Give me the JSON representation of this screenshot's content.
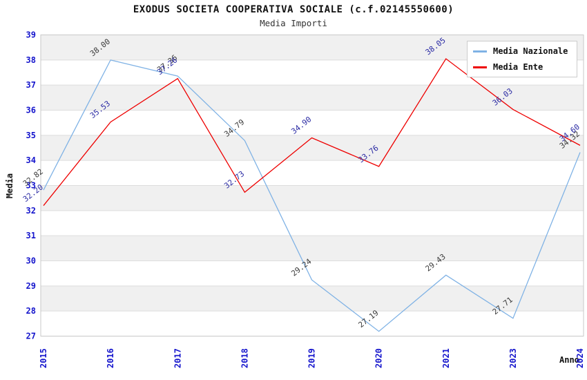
{
  "chart_data": {
    "type": "line",
    "title": "EXODUS SOCIETA COOPERATIVA SOCIALE (c.f.02145550600)",
    "subtitle": "Media Importi",
    "xlabel": "Anno",
    "ylabel": "Media",
    "categories": [
      "2015",
      "2016",
      "2017",
      "2018",
      "2019",
      "2020",
      "2021",
      "2023",
      "2024"
    ],
    "series": [
      {
        "name": "Media Nazionale",
        "color": "#7FB2E5",
        "label_color": "#3A3A3A",
        "values": [
          32.82,
          38.0,
          37.36,
          34.79,
          29.24,
          27.19,
          29.43,
          27.71,
          34.32
        ]
      },
      {
        "name": "Media Ente",
        "color": "#EE0000",
        "label_color": "#2929A3",
        "values": [
          32.2,
          35.53,
          37.26,
          32.73,
          34.9,
          33.76,
          38.05,
          36.03,
          34.6
        ]
      }
    ],
    "ylim": [
      27,
      39
    ],
    "ytick_step": 1,
    "grid": true,
    "band_fill": "#F0F0F0",
    "grid_color": "#DDDDDD",
    "border_color": "#C8C8C8",
    "axis_tick_color": "#1414CC",
    "legend_position": "top-right",
    "label_decimals": 2
  }
}
